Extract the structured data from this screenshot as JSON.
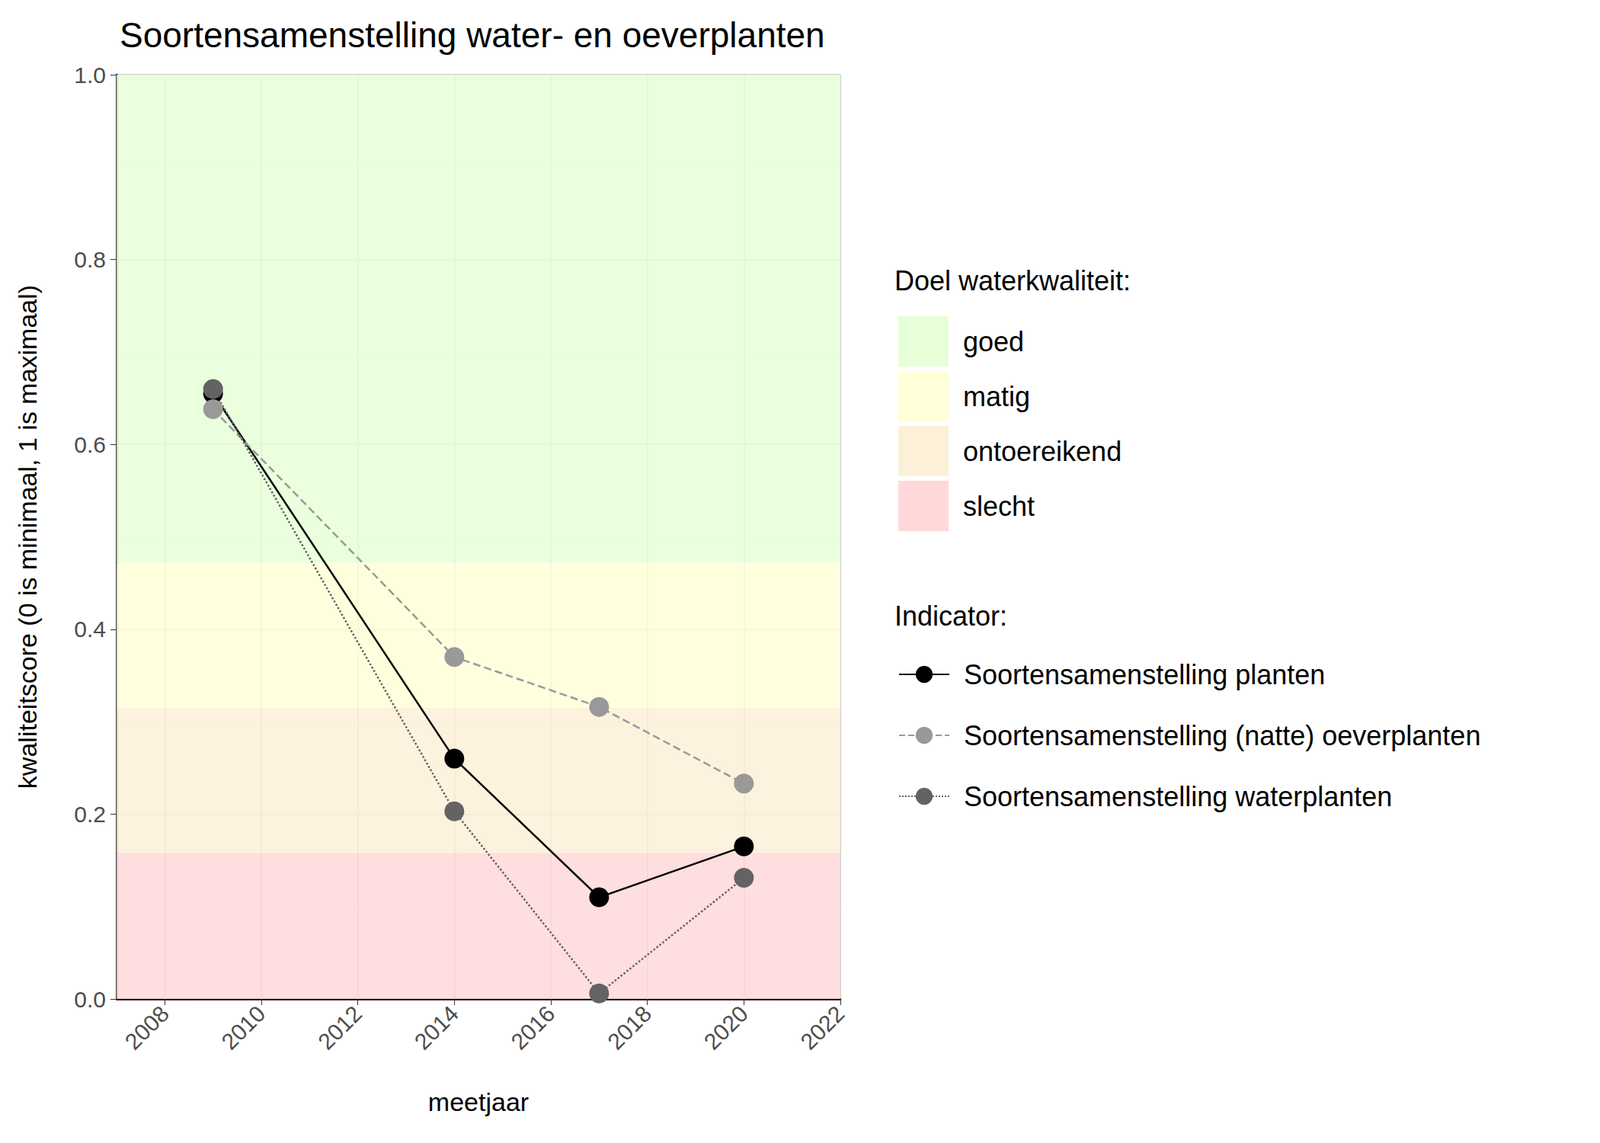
{
  "chart_data": {
    "type": "line",
    "title": "Soortensamenstelling water- en oeverplanten",
    "x_label": "meetjaar",
    "y_label": "kwaliteitscore (0 is minimaal, 1 is maximaal)",
    "x": [
      2009,
      2014,
      2017,
      2020
    ],
    "series": [
      {
        "name": "Soortensamenstelling planten",
        "color": "#000000",
        "line_style": "solid",
        "marker": "circle",
        "values": [
          0.655,
          0.26,
          0.11,
          0.165
        ]
      },
      {
        "name": "Soortensamenstelling (natte) oeverplanten",
        "color": "#999999",
        "line_style": "dashed",
        "marker": "circle",
        "values": [
          0.638,
          0.37,
          0.316,
          0.233
        ]
      },
      {
        "name": "Soortensamenstelling waterplanten",
        "color": "#636363",
        "line_style": "dotted",
        "marker": "circle",
        "values": [
          0.66,
          0.203,
          0.006,
          0.131
        ]
      }
    ],
    "series_legend_title": "Indicator:",
    "bands_legend_title": "Doel waterkwaliteit:",
    "bands": [
      {
        "name": "goed",
        "color": "#e6ffd8",
        "from": 0.472,
        "to": 1.0
      },
      {
        "name": "matig",
        "color": "#ffffd8",
        "from": 0.315,
        "to": 0.472
      },
      {
        "name": "ontoereikend",
        "color": "#fdf0d8",
        "from": 0.158,
        "to": 0.315
      },
      {
        "name": "slecht",
        "color": "#ffd8d9",
        "from": 0.0,
        "to": 0.158
      }
    ],
    "xlim": [
      2007,
      2022
    ],
    "xticks": [
      2008,
      2010,
      2012,
      2014,
      2016,
      2018,
      2020,
      2022
    ],
    "ylim": [
      0,
      1
    ],
    "yticks": [
      {
        "value": 0,
        "label": "0.0"
      },
      {
        "value": 0.2,
        "label": "0.2"
      },
      {
        "value": 0.4,
        "label": "0.4"
      },
      {
        "value": 0.6,
        "label": "0.6"
      },
      {
        "value": 0.8,
        "label": "0.8"
      },
      {
        "value": 1,
        "label": "1.0"
      }
    ],
    "grid": true,
    "legend": "right"
  }
}
